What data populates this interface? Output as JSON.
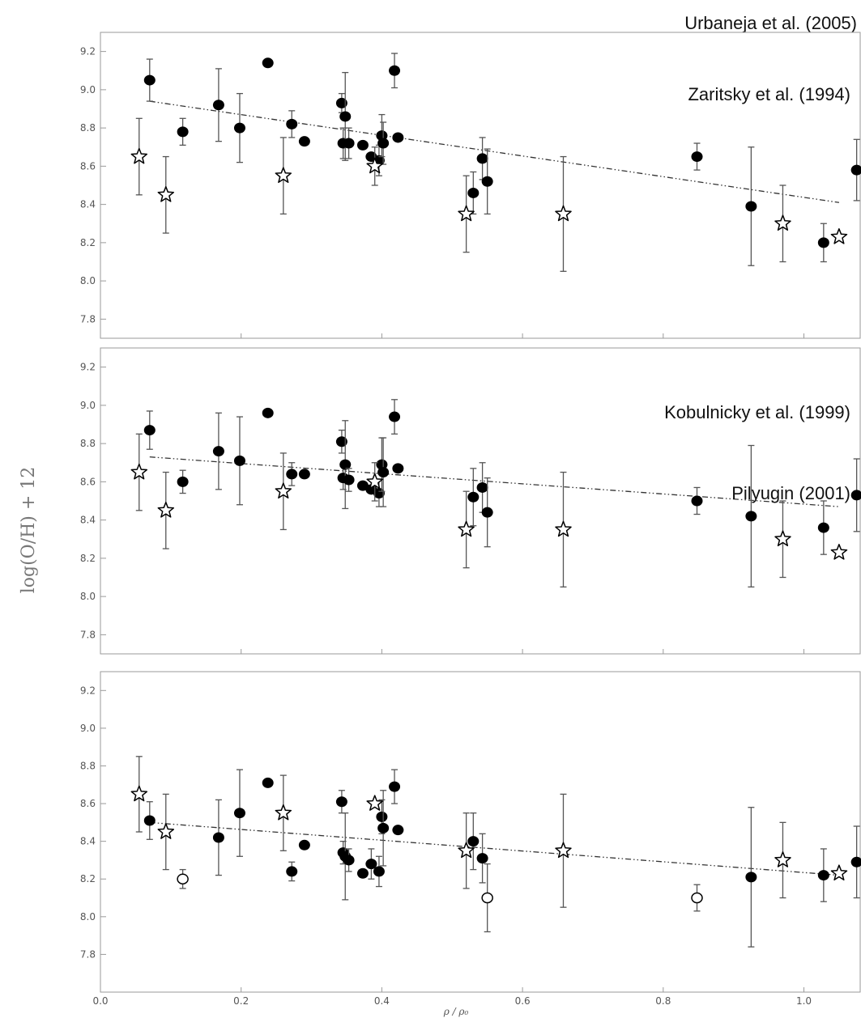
{
  "chart_data": {
    "type": "scatter",
    "ylabel": "log(O/H) + 12",
    "xlabel": "ρ / ρ₀",
    "source_label": "Urbaneja et al. (2005)",
    "xlim": [
      0.0,
      1.08
    ],
    "x_ticks": [
      "0.0",
      "0.2",
      "0.4",
      "0.6",
      "0.8",
      "1.0"
    ],
    "y_ticks": [
      "7.8",
      "8.0",
      "8.2",
      "8.4",
      "8.6",
      "8.8",
      "9.0",
      "9.2"
    ],
    "panels": [
      {
        "title": "Zaritsky et al. (1994)",
        "ylim": [
          7.7,
          9.3
        ],
        "fit": {
          "x": [
            0.07,
            1.05
          ],
          "y": [
            8.94,
            8.41
          ]
        },
        "series": [
          {
            "name": "",
            "marker": "filled-circle",
            "points": [
              {
                "x": 0.07,
                "y": 9.05,
                "err": 0.11
              },
              {
                "x": 0.117,
                "y": 8.78,
                "err": 0.07
              },
              {
                "x": 0.168,
                "y": 8.92,
                "err": 0.19
              },
              {
                "x": 0.198,
                "y": 8.8,
                "err": 0.18
              },
              {
                "x": 0.238,
                "y": 9.14,
                "err": 0
              },
              {
                "x": 0.272,
                "y": 8.82,
                "err": 0.07
              },
              {
                "x": 0.29,
                "y": 8.73,
                "err": 0
              },
              {
                "x": 0.343,
                "y": 8.93,
                "err": 0.05
              },
              {
                "x": 0.345,
                "y": 8.72,
                "err": 0.08
              },
              {
                "x": 0.348,
                "y": 8.86,
                "err": 0.23
              },
              {
                "x": 0.353,
                "y": 8.72,
                "err": 0.08
              },
              {
                "x": 0.373,
                "y": 8.71,
                "err": 0
              },
              {
                "x": 0.385,
                "y": 8.65,
                "err": 0
              },
              {
                "x": 0.396,
                "y": 8.63,
                "err": 0.08
              },
              {
                "x": 0.4,
                "y": 8.76,
                "err": 0.11
              },
              {
                "x": 0.402,
                "y": 8.72,
                "err": 0.11
              },
              {
                "x": 0.418,
                "y": 9.1,
                "err": 0.09
              },
              {
                "x": 0.423,
                "y": 8.75,
                "err": 0
              },
              {
                "x": 0.53,
                "y": 8.46,
                "err": 0.11
              },
              {
                "x": 0.543,
                "y": 8.64,
                "err": 0.11
              },
              {
                "x": 0.55,
                "y": 8.52,
                "err": 0.17
              },
              {
                "x": 0.848,
                "y": 8.65,
                "err": 0.07
              },
              {
                "x": 0.925,
                "y": 8.39,
                "err": 0.31
              },
              {
                "x": 1.028,
                "y": 8.2,
                "err": 0.1
              },
              {
                "x": 1.075,
                "y": 8.58,
                "err": 0.16
              }
            ]
          },
          {
            "name": "",
            "marker": "open-star",
            "points": [
              {
                "x": 0.055,
                "y": 8.65,
                "err": 0.2
              },
              {
                "x": 0.093,
                "y": 8.45,
                "err": 0.2
              },
              {
                "x": 0.26,
                "y": 8.55,
                "err": 0.2
              },
              {
                "x": 0.39,
                "y": 8.6,
                "err": 0.1
              },
              {
                "x": 0.52,
                "y": 8.35,
                "err": 0.2
              },
              {
                "x": 0.658,
                "y": 8.35,
                "err": 0.3
              },
              {
                "x": 0.97,
                "y": 8.3,
                "err": 0.2
              },
              {
                "x": 1.05,
                "y": 8.23,
                "err": 0
              }
            ]
          }
        ]
      },
      {
        "title": "Kobulnicky et al. (1999)",
        "ylim": [
          7.7,
          9.3
        ],
        "fit": {
          "x": [
            0.07,
            1.05
          ],
          "y": [
            8.73,
            8.47
          ]
        },
        "series": [
          {
            "name": "",
            "marker": "filled-circle",
            "points": [
              {
                "x": 0.07,
                "y": 8.87,
                "err": 0.1
              },
              {
                "x": 0.117,
                "y": 8.6,
                "err": 0.06
              },
              {
                "x": 0.168,
                "y": 8.76,
                "err": 0.2
              },
              {
                "x": 0.198,
                "y": 8.71,
                "err": 0.23
              },
              {
                "x": 0.238,
                "y": 8.96,
                "err": 0
              },
              {
                "x": 0.272,
                "y": 8.64,
                "err": 0.06
              },
              {
                "x": 0.29,
                "y": 8.64,
                "err": 0
              },
              {
                "x": 0.343,
                "y": 8.81,
                "err": 0.06
              },
              {
                "x": 0.345,
                "y": 8.62,
                "err": 0.06
              },
              {
                "x": 0.348,
                "y": 8.69,
                "err": 0.23
              },
              {
                "x": 0.353,
                "y": 8.61,
                "err": 0.06
              },
              {
                "x": 0.373,
                "y": 8.58,
                "err": 0
              },
              {
                "x": 0.385,
                "y": 8.56,
                "err": 0
              },
              {
                "x": 0.396,
                "y": 8.54,
                "err": 0.07
              },
              {
                "x": 0.4,
                "y": 8.69,
                "err": 0.14
              },
              {
                "x": 0.402,
                "y": 8.65,
                "err": 0.18
              },
              {
                "x": 0.418,
                "y": 8.94,
                "err": 0.09
              },
              {
                "x": 0.423,
                "y": 8.67,
                "err": 0
              },
              {
                "x": 0.53,
                "y": 8.52,
                "err": 0.15
              },
              {
                "x": 0.543,
                "y": 8.57,
                "err": 0.13
              },
              {
                "x": 0.55,
                "y": 8.44,
                "err": 0.18
              },
              {
                "x": 0.848,
                "y": 8.5,
                "err": 0.07
              },
              {
                "x": 0.925,
                "y": 8.42,
                "err": 0.37
              },
              {
                "x": 1.028,
                "y": 8.36,
                "err": 0.14
              },
              {
                "x": 1.075,
                "y": 8.53,
                "err": 0.19
              }
            ]
          },
          {
            "name": "",
            "marker": "open-star",
            "points": [
              {
                "x": 0.055,
                "y": 8.65,
                "err": 0.2
              },
              {
                "x": 0.093,
                "y": 8.45,
                "err": 0.2
              },
              {
                "x": 0.26,
                "y": 8.55,
                "err": 0.2
              },
              {
                "x": 0.39,
                "y": 8.6,
                "err": 0.1
              },
              {
                "x": 0.52,
                "y": 8.35,
                "err": 0.2
              },
              {
                "x": 0.658,
                "y": 8.35,
                "err": 0.3
              },
              {
                "x": 0.97,
                "y": 8.3,
                "err": 0.2
              },
              {
                "x": 1.05,
                "y": 8.23,
                "err": 0
              }
            ]
          }
        ]
      },
      {
        "title": "Pilyugin (2001)",
        "ylim": [
          7.6,
          9.3
        ],
        "fit": {
          "x": [
            0.07,
            1.05
          ],
          "y": [
            8.5,
            8.22
          ]
        },
        "series": [
          {
            "name": "",
            "marker": "filled-circle",
            "points": [
              {
                "x": 0.07,
                "y": 8.51,
                "err": 0.1
              },
              {
                "x": 0.168,
                "y": 8.42,
                "err": 0.2
              },
              {
                "x": 0.198,
                "y": 8.55,
                "err": 0.23
              },
              {
                "x": 0.238,
                "y": 8.71,
                "err": 0
              },
              {
                "x": 0.272,
                "y": 8.24,
                "err": 0.05
              },
              {
                "x": 0.29,
                "y": 8.38,
                "err": 0
              },
              {
                "x": 0.343,
                "y": 8.61,
                "err": 0.06
              },
              {
                "x": 0.345,
                "y": 8.34,
                "err": 0.06
              },
              {
                "x": 0.348,
                "y": 8.32,
                "err": 0.23
              },
              {
                "x": 0.353,
                "y": 8.3,
                "err": 0.06
              },
              {
                "x": 0.373,
                "y": 8.23,
                "err": 0
              },
              {
                "x": 0.385,
                "y": 8.28,
                "err": 0.08
              },
              {
                "x": 0.396,
                "y": 8.24,
                "err": 0.08
              },
              {
                "x": 0.4,
                "y": 8.53,
                "err": 0.09
              },
              {
                "x": 0.402,
                "y": 8.47,
                "err": 0.2
              },
              {
                "x": 0.418,
                "y": 8.69,
                "err": 0.09
              },
              {
                "x": 0.423,
                "y": 8.46,
                "err": 0
              },
              {
                "x": 0.53,
                "y": 8.4,
                "err": 0.15
              },
              {
                "x": 0.543,
                "y": 8.31,
                "err": 0.13
              },
              {
                "x": 0.925,
                "y": 8.21,
                "err": 0.37
              },
              {
                "x": 1.028,
                "y": 8.22,
                "err": 0.14
              },
              {
                "x": 1.075,
                "y": 8.29,
                "err": 0.19
              }
            ]
          },
          {
            "name": "",
            "marker": "open-circle",
            "points": [
              {
                "x": 0.117,
                "y": 8.2,
                "err": 0.05
              },
              {
                "x": 0.55,
                "y": 8.1,
                "err": 0.18
              },
              {
                "x": 0.848,
                "y": 8.1,
                "err": 0.07
              }
            ]
          },
          {
            "name": "",
            "marker": "open-star",
            "points": [
              {
                "x": 0.055,
                "y": 8.65,
                "err": 0.2
              },
              {
                "x": 0.093,
                "y": 8.45,
                "err": 0.2
              },
              {
                "x": 0.26,
                "y": 8.55,
                "err": 0.2
              },
              {
                "x": 0.39,
                "y": 8.6,
                "err": 0
              },
              {
                "x": 0.52,
                "y": 8.35,
                "err": 0.2
              },
              {
                "x": 0.658,
                "y": 8.35,
                "err": 0.3
              },
              {
                "x": 0.97,
                "y": 8.3,
                "err": 0.2
              },
              {
                "x": 1.05,
                "y": 8.23,
                "err": 0
              }
            ]
          }
        ]
      }
    ]
  }
}
